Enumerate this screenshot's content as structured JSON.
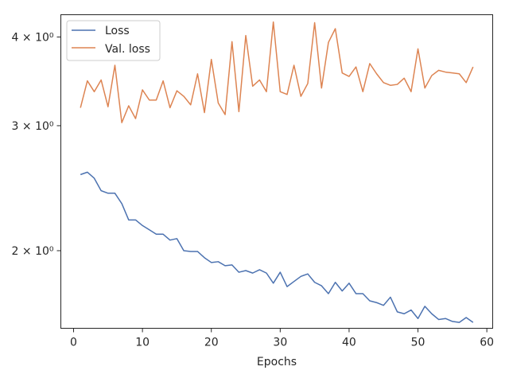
{
  "chart_data": {
    "type": "line",
    "xlabel": "Epochs",
    "ylabel": "",
    "xlim": [
      -1.85,
      60.85
    ],
    "ylim": [
      1.555,
      4.3
    ],
    "yscale": "log",
    "grid": false,
    "legend_position": "top-left",
    "x_ticks": [
      0,
      10,
      20,
      30,
      40,
      50,
      60
    ],
    "x_tick_labels": [
      "0",
      "10",
      "20",
      "30",
      "40",
      "50",
      "60"
    ],
    "y_ticks": [
      2,
      3,
      4
    ],
    "y_tick_labels": [
      "2 × 10⁰",
      "3 × 10⁰",
      "4 × 10⁰"
    ],
    "series": [
      {
        "name": "Loss",
        "color": "#4c72b0",
        "x": [
          1,
          2,
          3,
          4,
          5,
          6,
          7,
          8,
          9,
          10,
          11,
          12,
          13,
          14,
          15,
          16,
          17,
          18,
          19,
          20,
          21,
          22,
          23,
          24,
          25,
          26,
          27,
          28,
          29,
          30,
          31,
          32,
          33,
          34,
          35,
          36,
          37,
          38,
          39,
          40,
          41,
          42,
          43,
          44,
          45,
          46,
          47,
          48,
          49,
          50,
          51,
          52,
          53,
          54,
          55,
          56,
          57,
          58
        ],
        "values": [
          2.56,
          2.58,
          2.53,
          2.43,
          2.41,
          2.41,
          2.33,
          2.21,
          2.21,
          2.17,
          2.14,
          2.11,
          2.11,
          2.07,
          2.08,
          2.0,
          1.995,
          1.995,
          1.955,
          1.925,
          1.93,
          1.905,
          1.91,
          1.865,
          1.875,
          1.86,
          1.88,
          1.86,
          1.8,
          1.865,
          1.78,
          1.81,
          1.84,
          1.855,
          1.805,
          1.785,
          1.74,
          1.805,
          1.755,
          1.8,
          1.74,
          1.74,
          1.7,
          1.69,
          1.675,
          1.72,
          1.64,
          1.63,
          1.65,
          1.605,
          1.67,
          1.63,
          1.6,
          1.605,
          1.59,
          1.585,
          1.61,
          1.585
        ]
      },
      {
        "name": "Val. loss",
        "color": "#dd8452",
        "x": [
          1,
          2,
          3,
          4,
          5,
          6,
          7,
          8,
          9,
          10,
          11,
          12,
          13,
          14,
          15,
          16,
          17,
          18,
          19,
          20,
          21,
          22,
          23,
          24,
          25,
          26,
          27,
          28,
          29,
          30,
          31,
          32,
          33,
          34,
          35,
          36,
          37,
          38,
          39,
          40,
          41,
          42,
          43,
          44,
          45,
          46,
          47,
          48,
          49,
          50,
          51,
          52,
          53,
          54,
          55,
          56,
          57,
          58
        ],
        "values": [
          3.18,
          3.47,
          3.35,
          3.48,
          3.19,
          3.65,
          3.03,
          3.2,
          3.07,
          3.37,
          3.26,
          3.26,
          3.47,
          3.18,
          3.36,
          3.3,
          3.21,
          3.55,
          3.13,
          3.72,
          3.23,
          3.11,
          3.94,
          3.14,
          4.02,
          3.41,
          3.48,
          3.35,
          4.2,
          3.35,
          3.32,
          3.65,
          3.3,
          3.44,
          4.19,
          3.39,
          3.93,
          4.11,
          3.56,
          3.52,
          3.63,
          3.35,
          3.67,
          3.55,
          3.45,
          3.42,
          3.43,
          3.5,
          3.35,
          3.85,
          3.39,
          3.53,
          3.59,
          3.57,
          3.56,
          3.55,
          3.45,
          3.63
        ]
      }
    ]
  }
}
